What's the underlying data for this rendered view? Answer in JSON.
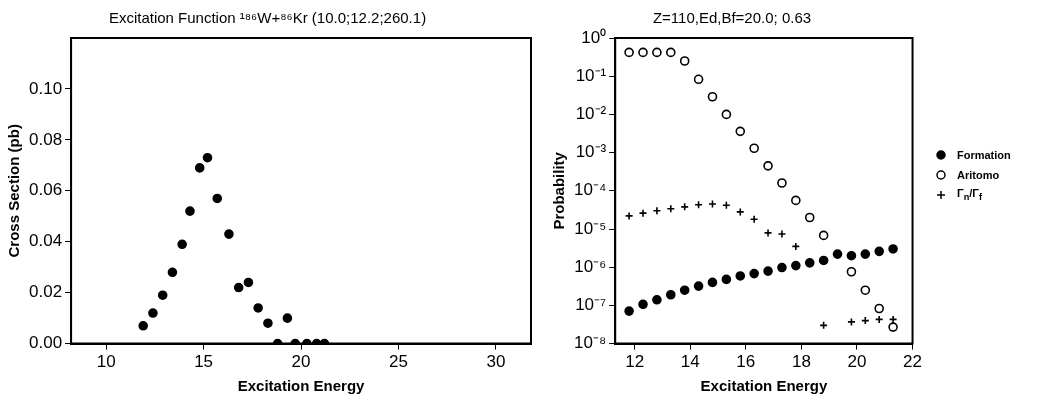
{
  "chart_data": [
    {
      "type": "scatter",
      "title": "Excitation Function ¹⁸⁶W+⁸⁶Kr (10.0;12.2;260.1)",
      "xlabel": "Excitation Energy",
      "ylabel": "Cross Section (pb)",
      "marker": "circle",
      "legend": false,
      "grid": false,
      "xlim": [
        8.2,
        31.8
      ],
      "xticks": [
        10,
        15,
        20,
        25,
        30
      ],
      "ylim": [
        0,
        0.12
      ],
      "yticks": [
        {
          "value": 0,
          "label": "0.00"
        },
        {
          "value": 0.02,
          "label": "0.02"
        },
        {
          "value": 0.04,
          "label": "0.04"
        },
        {
          "value": 0.06,
          "label": "0.06"
        },
        {
          "value": 0.08,
          "label": "0.08"
        },
        {
          "value": 0.1,
          "label": "0.10"
        }
      ],
      "series": [
        {
          "color": "#000000",
          "x": [
            11.9,
            12.4,
            12.9,
            13.4,
            13.9,
            14.3,
            14.8,
            15.2,
            15.7,
            16.3,
            16.8,
            17.3,
            17.8,
            18.3,
            18.8,
            19.3,
            19.7,
            20.3,
            20.8,
            21.2
          ],
          "values": [
            0.007,
            0.012,
            0.019,
            0.028,
            0.039,
            0.052,
            0.069,
            0.073,
            0.057,
            0.043,
            0.022,
            0.024,
            0.014,
            0.008,
            0,
            0.01,
            0,
            0,
            0,
            0
          ]
        }
      ]
    },
    {
      "type": "scatter",
      "title": "Z=110,Ed,Bf=20.0; 0.63",
      "xlabel": "Excitation Energy",
      "ylabel": "Probability",
      "log": "y",
      "legend": "right",
      "grid": false,
      "xlim": [
        11.3,
        22
      ],
      "xticks": [
        12,
        14,
        16,
        18,
        20,
        22
      ],
      "ylim": [
        1e-08,
        1
      ],
      "yticks": [
        {
          "value": 1,
          "label": "10⁰"
        },
        {
          "value": 0.1,
          "label": "10⁻¹"
        },
        {
          "value": 0.01,
          "label": "10⁻²"
        },
        {
          "value": 0.001,
          "label": "10⁻³"
        },
        {
          "value": 0.0001,
          "label": "10⁻⁴"
        },
        {
          "value": 1e-05,
          "label": "10⁻⁵"
        },
        {
          "value": 1e-06,
          "label": "10⁻⁶"
        },
        {
          "value": 1e-07,
          "label": "10⁻⁷"
        },
        {
          "value": 1e-08,
          "label": "10⁻⁸"
        }
      ],
      "x": [
        11.8,
        12.3,
        12.8,
        13.3,
        13.8,
        14.3,
        14.8,
        15.3,
        15.8,
        16.3,
        16.8,
        17.3,
        17.8,
        18.3,
        18.8,
        19.3,
        19.8,
        20.3,
        20.8,
        21.3
      ],
      "series": [
        {
          "name": "Formation",
          "color": "#000000",
          "marker": "circle",
          "values": [
            7.1e-08,
            1.07e-07,
            1.4e-07,
            1.9e-07,
            2.5e-07,
            3.2e-07,
            4e-07,
            4.8e-07,
            5.9e-07,
            6.8e-07,
            7.9e-07,
            9.8e-07,
            1.1e-06,
            1.3e-06,
            1.5e-06,
            2.2e-06,
            2e-06,
            2.2e-06,
            2.6e-06,
            3e-06
          ]
        },
        {
          "name": "Aritomo",
          "color": "#ffffff",
          "marker": "circle",
          "values": [
            0.42,
            0.42,
            0.42,
            0.42,
            0.25,
            0.083,
            0.029,
            0.01,
            0.0036,
            0.0013,
            0.00045,
            0.00016,
            5.6e-05,
            2e-05,
            6.8e-06,
            null,
            7.6e-07,
            2.5e-07,
            8.3e-08,
            2.7e-08
          ]
        },
        {
          "name": "Γ$_{n}$/Γ$_{f}$",
          "color": "#000000",
          "marker": "cross",
          "values": [
            2.2e-05,
            2.6e-05,
            3e-05,
            3.4e-05,
            3.8e-05,
            4.3e-05,
            4.5e-05,
            4.2e-05,
            2.8e-05,
            1.8e-05,
            7.9e-06,
            7.4e-06,
            3.5e-06,
            null,
            3e-08,
            null,
            3.7e-08,
            4e-08,
            4.3e-08,
            4.3e-08
          ]
        }
      ]
    }
  ]
}
